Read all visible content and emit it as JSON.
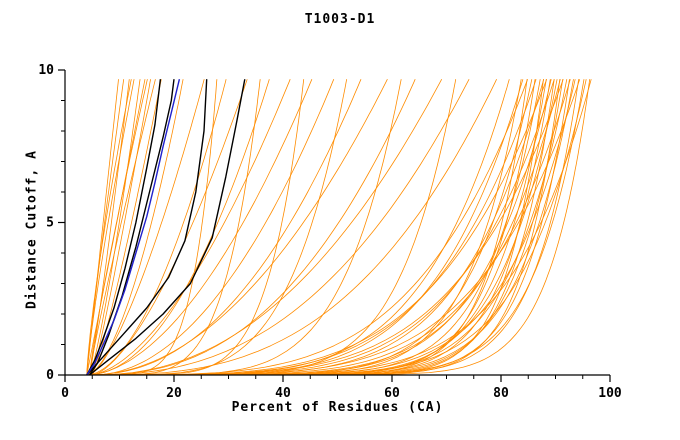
{
  "chart_data": {
    "type": "line",
    "title": "T1003-D1",
    "xlabel": "Percent of Residues (CA)",
    "ylabel": "Distance Cutoff, A",
    "xlim": [
      0,
      100
    ],
    "ylim": [
      0,
      10
    ],
    "x_ticks": [
      0,
      20,
      40,
      60,
      80,
      100
    ],
    "x_minor_step": 5,
    "y_ticks": [
      0,
      5,
      10
    ],
    "y_minor_step": 1,
    "curve_top": 9.7,
    "grid": false,
    "legend": "none",
    "colors": {
      "prediction": "#FF8C00",
      "reference": "#000000",
      "special": "#2222CC",
      "axis": "#000000"
    },
    "highlight_series": [
      {
        "name": "black-model-1",
        "color": "#000000",
        "width": 1.4,
        "points": [
          [
            4,
            0
          ],
          [
            5.5,
            0.5
          ],
          [
            7,
            1.2
          ],
          [
            9,
            2.2
          ],
          [
            11,
            3.5
          ],
          [
            13,
            5.0
          ],
          [
            15,
            6.8
          ],
          [
            16.5,
            8.2
          ],
          [
            17.5,
            9.7
          ]
        ]
      },
      {
        "name": "black-model-2",
        "color": "#000000",
        "width": 1.4,
        "points": [
          [
            4.5,
            0
          ],
          [
            6,
            0.4
          ],
          [
            8,
            1.3
          ],
          [
            10.5,
            2.6
          ],
          [
            13,
            4.2
          ],
          [
            15.5,
            6.0
          ],
          [
            18,
            7.8
          ],
          [
            19.5,
            9.0
          ],
          [
            20,
            9.7
          ]
        ]
      },
      {
        "name": "black-model-3",
        "color": "#000000",
        "width": 1.4,
        "points": [
          [
            4,
            0
          ],
          [
            7,
            0.6
          ],
          [
            11,
            1.4
          ],
          [
            15,
            2.2
          ],
          [
            19,
            3.2
          ],
          [
            22,
            4.4
          ],
          [
            24,
            6.0
          ],
          [
            25.5,
            8.0
          ],
          [
            26,
            9.7
          ]
        ]
      },
      {
        "name": "black-model-4",
        "color": "#000000",
        "width": 1.4,
        "points": [
          [
            4.5,
            0
          ],
          [
            8,
            0.5
          ],
          [
            13,
            1.2
          ],
          [
            18,
            2.0
          ],
          [
            23,
            3.0
          ],
          [
            27,
            4.5
          ],
          [
            29.5,
            6.5
          ],
          [
            31.5,
            8.3
          ],
          [
            33,
            9.7
          ]
        ]
      },
      {
        "name": "blue-model",
        "color": "#2222CC",
        "width": 1.4,
        "points": [
          [
            4,
            0
          ],
          [
            5.5,
            0.4
          ],
          [
            7,
            1.0
          ],
          [
            9,
            1.8
          ],
          [
            11,
            2.8
          ],
          [
            13,
            4.0
          ],
          [
            15,
            5.2
          ],
          [
            16.5,
            6.3
          ],
          [
            18,
            7.5
          ],
          [
            19.5,
            8.6
          ],
          [
            21,
            9.7
          ]
        ]
      }
    ],
    "background_bundle": {
      "color": "#FF8C00",
      "width": 0.8,
      "format": [
        "x_start_percent",
        "x_end_percent_at_cutoff10",
        "rise_exponent"
      ],
      "curves": [
        [
          4,
          10,
          1.0
        ],
        [
          4,
          11,
          1.1
        ],
        [
          4.5,
          12,
          0.9
        ],
        [
          4,
          13,
          1.2
        ],
        [
          4.5,
          14,
          0.8
        ],
        [
          4,
          15,
          1.0
        ],
        [
          5,
          16,
          0.9
        ],
        [
          4.5,
          17,
          1.1
        ],
        [
          5,
          18,
          0.85
        ],
        [
          4,
          12.5,
          1.3
        ],
        [
          4.5,
          15.5,
          1.15
        ],
        [
          4,
          22,
          0.6
        ],
        [
          4.5,
          26,
          0.7
        ],
        [
          4,
          30,
          0.55
        ],
        [
          5,
          34,
          0.65
        ],
        [
          4,
          38,
          0.5
        ],
        [
          4.5,
          42,
          0.6
        ],
        [
          4,
          46,
          0.55
        ],
        [
          5,
          50,
          0.5
        ],
        [
          4,
          55,
          0.45
        ],
        [
          4.5,
          60,
          0.5
        ],
        [
          4,
          65,
          0.4
        ],
        [
          5,
          70,
          0.45
        ],
        [
          4,
          75,
          0.4
        ],
        [
          4.5,
          80,
          0.35
        ],
        [
          4,
          28,
          0.18
        ],
        [
          4.5,
          36,
          0.2
        ],
        [
          4,
          44,
          0.16
        ],
        [
          5,
          52,
          0.22
        ],
        [
          4,
          62,
          0.18
        ],
        [
          4.5,
          72,
          0.15
        ],
        [
          4,
          82,
          0.2
        ],
        [
          4,
          84,
          0.12
        ],
        [
          4.5,
          84.5,
          0.2
        ],
        [
          5,
          85,
          0.09
        ],
        [
          4,
          85.5,
          0.25
        ],
        [
          5,
          86,
          0.14
        ],
        [
          4.5,
          86.5,
          0.1
        ],
        [
          4,
          87,
          0.22
        ],
        [
          5,
          87.5,
          0.12
        ],
        [
          4.5,
          88,
          0.08
        ],
        [
          4,
          88.3,
          0.18
        ],
        [
          5,
          88.6,
          0.11
        ],
        [
          4.5,
          89,
          0.24
        ],
        [
          4,
          89.3,
          0.1
        ],
        [
          5,
          89.6,
          0.15
        ],
        [
          4.5,
          90,
          0.09
        ],
        [
          4,
          90.3,
          0.2
        ],
        [
          5,
          90.6,
          0.12
        ],
        [
          4.5,
          91,
          0.08
        ],
        [
          4,
          91.3,
          0.16
        ],
        [
          5,
          91.6,
          0.1
        ],
        [
          4.5,
          92,
          0.22
        ],
        [
          4,
          92.4,
          0.12
        ],
        [
          5,
          92.8,
          0.09
        ],
        [
          4.5,
          93.2,
          0.18
        ],
        [
          4,
          93.6,
          0.11
        ],
        [
          5,
          94,
          0.14
        ],
        [
          4.5,
          94.5,
          0.09
        ],
        [
          4,
          95,
          0.2
        ],
        [
          5,
          95.5,
          0.1
        ],
        [
          4.5,
          96,
          0.13
        ],
        [
          4,
          96.5,
          0.08
        ],
        [
          5,
          97,
          0.16
        ]
      ]
    }
  }
}
